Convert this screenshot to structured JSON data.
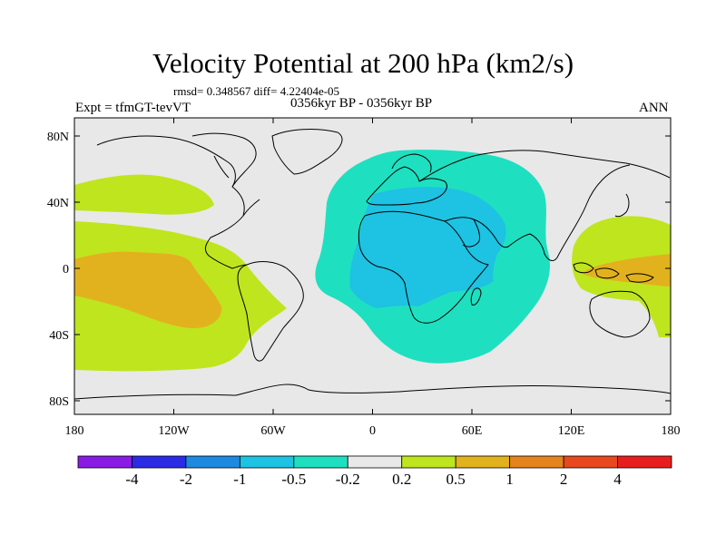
{
  "title": "Velocity Potential at 200 hPa (km2/s)",
  "stats": "rmsd= 0.348567 diff= 4.22404e-05",
  "experiment": "Expt = tfmGT-tevVT",
  "period": "0356kyr BP - 0356kyr BP",
  "season": "ANN",
  "lat_labels": [
    "80N",
    "40N",
    "0",
    "40S",
    "80S"
  ],
  "lon_labels": [
    "180",
    "120W",
    "60W",
    "0",
    "60E",
    "120E",
    "180"
  ],
  "colorbar": {
    "colors": [
      "#8a1be4",
      "#2b2be6",
      "#1d8ae0",
      "#1ec2e2",
      "#1ee0c0",
      "#e8e8e8",
      "#bfe51e",
      "#e2b21e",
      "#e5841e",
      "#e8481e",
      "#e81e1e"
    ],
    "labels": [
      "-4",
      "-2",
      "-1",
      "-0.5",
      "-0.2",
      "0.2",
      "0.5",
      "1",
      "2",
      "4"
    ]
  }
}
